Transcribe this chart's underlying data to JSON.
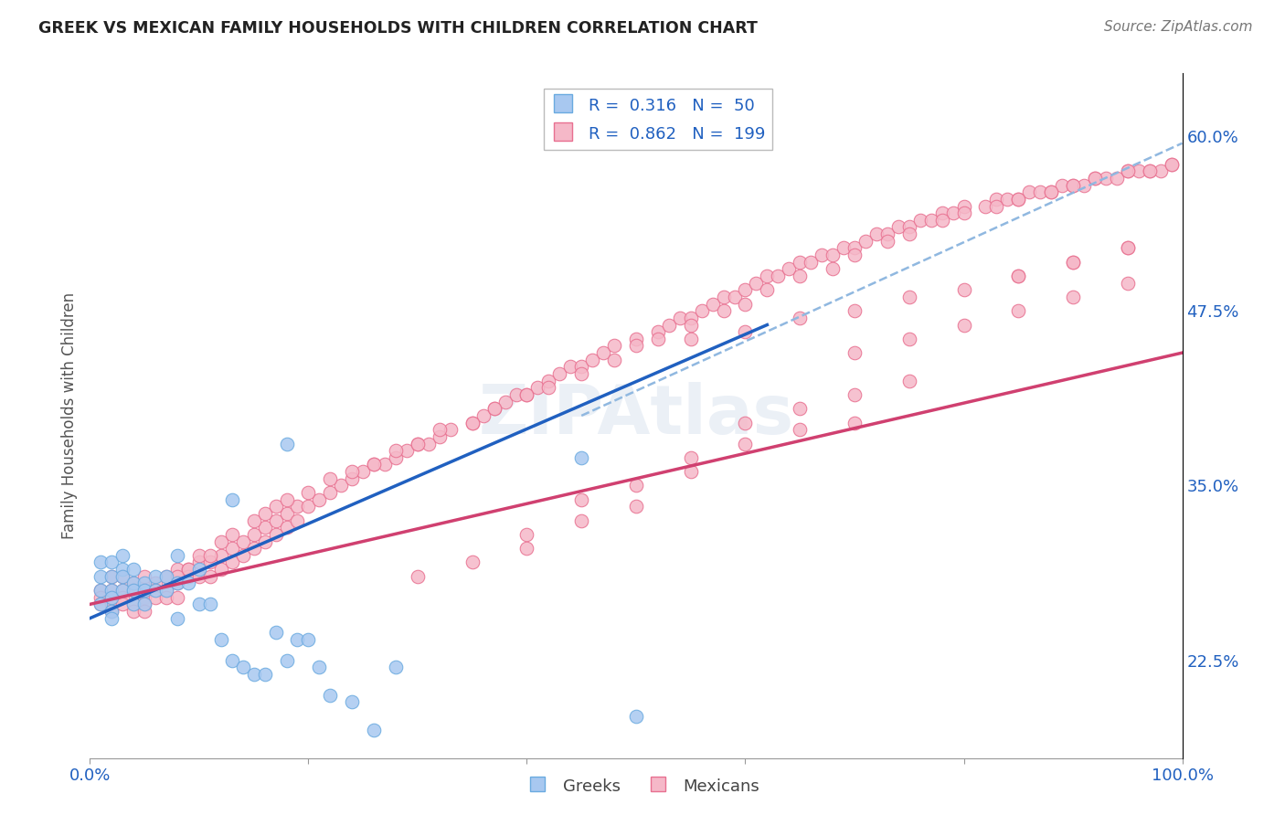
{
  "title": "GREEK VS MEXICAN FAMILY HOUSEHOLDS WITH CHILDREN CORRELATION CHART",
  "source": "Source: ZipAtlas.com",
  "ylabel": "Family Households with Children",
  "xlim": [
    0.0,
    1.0
  ],
  "ylim": [
    0.155,
    0.645
  ],
  "y_ticks_right": [
    0.225,
    0.35,
    0.475,
    0.6
  ],
  "y_tick_labels_right": [
    "22.5%",
    "35.0%",
    "47.5%",
    "60.0%"
  ],
  "greek_color": "#a8c8f0",
  "greek_edge_color": "#6aaae0",
  "mexican_color": "#f5b8c8",
  "mexican_edge_color": "#e87090",
  "greek_line_color": "#2060c0",
  "mexican_line_color": "#d04070",
  "dashed_line_color": "#90b8e0",
  "grid_color": "#cccccc",
  "background_color": "#ffffff",
  "watermark": "ZIPAtlas",
  "greek_line_x": [
    0.0,
    0.62
  ],
  "greek_line_y": [
    0.255,
    0.465
  ],
  "mexican_line_x": [
    0.0,
    1.0
  ],
  "mexican_line_y": [
    0.265,
    0.445
  ],
  "dashed_line_x": [
    0.45,
    1.0
  ],
  "dashed_line_y": [
    0.4,
    0.595
  ],
  "greek_scatter_x": [
    0.01,
    0.01,
    0.01,
    0.01,
    0.02,
    0.02,
    0.02,
    0.02,
    0.02,
    0.02,
    0.03,
    0.03,
    0.03,
    0.03,
    0.04,
    0.04,
    0.04,
    0.04,
    0.05,
    0.05,
    0.05,
    0.06,
    0.06,
    0.07,
    0.07,
    0.08,
    0.08,
    0.08,
    0.09,
    0.1,
    0.1,
    0.11,
    0.12,
    0.13,
    0.13,
    0.14,
    0.15,
    0.16,
    0.17,
    0.18,
    0.18,
    0.19,
    0.2,
    0.21,
    0.22,
    0.24,
    0.26,
    0.28,
    0.45,
    0.5
  ],
  "greek_scatter_y": [
    0.295,
    0.285,
    0.275,
    0.265,
    0.295,
    0.285,
    0.275,
    0.27,
    0.26,
    0.255,
    0.3,
    0.29,
    0.285,
    0.275,
    0.29,
    0.28,
    0.275,
    0.265,
    0.28,
    0.275,
    0.265,
    0.285,
    0.275,
    0.285,
    0.275,
    0.3,
    0.28,
    0.255,
    0.28,
    0.29,
    0.265,
    0.265,
    0.24,
    0.225,
    0.34,
    0.22,
    0.215,
    0.215,
    0.245,
    0.225,
    0.38,
    0.24,
    0.24,
    0.22,
    0.2,
    0.195,
    0.175,
    0.22,
    0.37,
    0.185
  ],
  "mexican_scatter_x": [
    0.01,
    0.01,
    0.01,
    0.02,
    0.02,
    0.02,
    0.02,
    0.02,
    0.03,
    0.03,
    0.03,
    0.03,
    0.04,
    0.04,
    0.04,
    0.04,
    0.05,
    0.05,
    0.05,
    0.05,
    0.05,
    0.06,
    0.06,
    0.06,
    0.07,
    0.07,
    0.07,
    0.08,
    0.08,
    0.08,
    0.09,
    0.09,
    0.1,
    0.1,
    0.11,
    0.11,
    0.12,
    0.12,
    0.13,
    0.13,
    0.14,
    0.14,
    0.15,
    0.15,
    0.16,
    0.16,
    0.17,
    0.17,
    0.18,
    0.18,
    0.19,
    0.19,
    0.2,
    0.21,
    0.22,
    0.23,
    0.24,
    0.25,
    0.26,
    0.27,
    0.28,
    0.29,
    0.3,
    0.31,
    0.32,
    0.33,
    0.35,
    0.36,
    0.37,
    0.38,
    0.39,
    0.4,
    0.41,
    0.42,
    0.43,
    0.44,
    0.45,
    0.46,
    0.47,
    0.48,
    0.5,
    0.52,
    0.53,
    0.54,
    0.55,
    0.56,
    0.57,
    0.58,
    0.59,
    0.6,
    0.61,
    0.62,
    0.63,
    0.64,
    0.65,
    0.66,
    0.67,
    0.68,
    0.69,
    0.7,
    0.71,
    0.72,
    0.73,
    0.74,
    0.75,
    0.76,
    0.77,
    0.78,
    0.79,
    0.8,
    0.82,
    0.83,
    0.84,
    0.85,
    0.86,
    0.87,
    0.88,
    0.89,
    0.9,
    0.91,
    0.92,
    0.93,
    0.94,
    0.95,
    0.96,
    0.97,
    0.98,
    0.99,
    0.08,
    0.09,
    0.1,
    0.11,
    0.12,
    0.13,
    0.15,
    0.16,
    0.17,
    0.18,
    0.2,
    0.22,
    0.24,
    0.26,
    0.28,
    0.3,
    0.32,
    0.35,
    0.37,
    0.4,
    0.42,
    0.45,
    0.48,
    0.5,
    0.52,
    0.55,
    0.58,
    0.6,
    0.62,
    0.65,
    0.68,
    0.7,
    0.73,
    0.75,
    0.78,
    0.8,
    0.83,
    0.85,
    0.88,
    0.9,
    0.92,
    0.95,
    0.97,
    0.99,
    0.55,
    0.6,
    0.65,
    0.7,
    0.75,
    0.8,
    0.85,
    0.9,
    0.95,
    0.7,
    0.75,
    0.8,
    0.85,
    0.9,
    0.95,
    0.85,
    0.9,
    0.95,
    0.6,
    0.65,
    0.7,
    0.75,
    0.55,
    0.6,
    0.65,
    0.7,
    0.45,
    0.5,
    0.55,
    0.4,
    0.45,
    0.5,
    0.35,
    0.4,
    0.3
  ],
  "mexican_scatter_y": [
    0.275,
    0.27,
    0.265,
    0.285,
    0.275,
    0.27,
    0.265,
    0.26,
    0.285,
    0.275,
    0.27,
    0.265,
    0.28,
    0.275,
    0.265,
    0.26,
    0.285,
    0.275,
    0.27,
    0.265,
    0.26,
    0.28,
    0.275,
    0.27,
    0.285,
    0.275,
    0.27,
    0.29,
    0.28,
    0.27,
    0.29,
    0.285,
    0.295,
    0.285,
    0.295,
    0.285,
    0.3,
    0.29,
    0.305,
    0.295,
    0.31,
    0.3,
    0.315,
    0.305,
    0.32,
    0.31,
    0.325,
    0.315,
    0.33,
    0.32,
    0.335,
    0.325,
    0.335,
    0.34,
    0.345,
    0.35,
    0.355,
    0.36,
    0.365,
    0.365,
    0.37,
    0.375,
    0.38,
    0.38,
    0.385,
    0.39,
    0.395,
    0.4,
    0.405,
    0.41,
    0.415,
    0.415,
    0.42,
    0.425,
    0.43,
    0.435,
    0.435,
    0.44,
    0.445,
    0.45,
    0.455,
    0.46,
    0.465,
    0.47,
    0.47,
    0.475,
    0.48,
    0.485,
    0.485,
    0.49,
    0.495,
    0.5,
    0.5,
    0.505,
    0.51,
    0.51,
    0.515,
    0.515,
    0.52,
    0.52,
    0.525,
    0.53,
    0.53,
    0.535,
    0.535,
    0.54,
    0.54,
    0.545,
    0.545,
    0.55,
    0.55,
    0.555,
    0.555,
    0.555,
    0.56,
    0.56,
    0.56,
    0.565,
    0.565,
    0.565,
    0.57,
    0.57,
    0.57,
    0.575,
    0.575,
    0.575,
    0.575,
    0.58,
    0.285,
    0.29,
    0.3,
    0.3,
    0.31,
    0.315,
    0.325,
    0.33,
    0.335,
    0.34,
    0.345,
    0.355,
    0.36,
    0.365,
    0.375,
    0.38,
    0.39,
    0.395,
    0.405,
    0.415,
    0.42,
    0.43,
    0.44,
    0.45,
    0.455,
    0.465,
    0.475,
    0.48,
    0.49,
    0.5,
    0.505,
    0.515,
    0.525,
    0.53,
    0.54,
    0.545,
    0.55,
    0.555,
    0.56,
    0.565,
    0.57,
    0.575,
    0.575,
    0.58,
    0.455,
    0.46,
    0.47,
    0.475,
    0.485,
    0.49,
    0.5,
    0.51,
    0.52,
    0.445,
    0.455,
    0.465,
    0.475,
    0.485,
    0.495,
    0.5,
    0.51,
    0.52,
    0.395,
    0.405,
    0.415,
    0.425,
    0.37,
    0.38,
    0.39,
    0.395,
    0.34,
    0.35,
    0.36,
    0.315,
    0.325,
    0.335,
    0.295,
    0.305,
    0.285
  ]
}
